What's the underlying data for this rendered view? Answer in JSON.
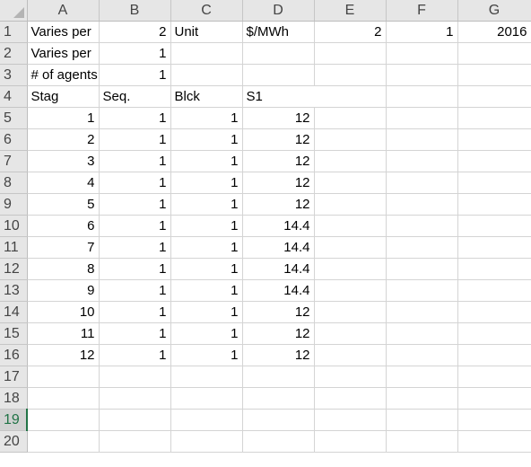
{
  "columns": [
    "A",
    "B",
    "C",
    "D",
    "E",
    "F",
    "G"
  ],
  "selected_row": "19",
  "rows": [
    {
      "n": "1",
      "cells": [
        "Varies per",
        "2",
        "Unit",
        "$/MWh",
        "2",
        "1",
        "2016"
      ]
    },
    {
      "n": "2",
      "cells": [
        "Varies per",
        "1",
        "",
        "",
        "",
        "",
        ""
      ]
    },
    {
      "n": "3",
      "cells": [
        "# of agents",
        "1",
        "",
        "",
        "",
        "",
        ""
      ]
    },
    {
      "n": "4",
      "cells": [
        "Stag",
        "Seq.",
        "Blck",
        "S1",
        "",
        "",
        ""
      ]
    },
    {
      "n": "5",
      "cells": [
        "1",
        "1",
        "1",
        "12",
        "",
        "",
        ""
      ]
    },
    {
      "n": "6",
      "cells": [
        "2",
        "1",
        "1",
        "12",
        "",
        "",
        ""
      ]
    },
    {
      "n": "7",
      "cells": [
        "3",
        "1",
        "1",
        "12",
        "",
        "",
        ""
      ]
    },
    {
      "n": "8",
      "cells": [
        "4",
        "1",
        "1",
        "12",
        "",
        "",
        ""
      ]
    },
    {
      "n": "9",
      "cells": [
        "5",
        "1",
        "1",
        "12",
        "",
        "",
        ""
      ]
    },
    {
      "n": "10",
      "cells": [
        "6",
        "1",
        "1",
        "14.4",
        "",
        "",
        ""
      ]
    },
    {
      "n": "11",
      "cells": [
        "7",
        "1",
        "1",
        "14.4",
        "",
        "",
        ""
      ]
    },
    {
      "n": "12",
      "cells": [
        "8",
        "1",
        "1",
        "14.4",
        "",
        "",
        ""
      ]
    },
    {
      "n": "13",
      "cells": [
        "9",
        "1",
        "1",
        "14.4",
        "",
        "",
        ""
      ]
    },
    {
      "n": "14",
      "cells": [
        "10",
        "1",
        "1",
        "12",
        "",
        "",
        ""
      ]
    },
    {
      "n": "15",
      "cells": [
        "11",
        "1",
        "1",
        "12",
        "",
        "",
        ""
      ]
    },
    {
      "n": "16",
      "cells": [
        "12",
        "1",
        "1",
        "12",
        "",
        "",
        ""
      ]
    },
    {
      "n": "17",
      "cells": [
        "",
        "",
        "",
        "",
        "",
        "",
        ""
      ]
    },
    {
      "n": "18",
      "cells": [
        "",
        "",
        "",
        "",
        "",
        "",
        ""
      ]
    },
    {
      "n": "19",
      "cells": [
        "",
        "",
        "",
        "",
        "",
        "",
        ""
      ]
    },
    {
      "n": "20",
      "cells": [
        "",
        "",
        "",
        "",
        "",
        "",
        ""
      ]
    }
  ]
}
